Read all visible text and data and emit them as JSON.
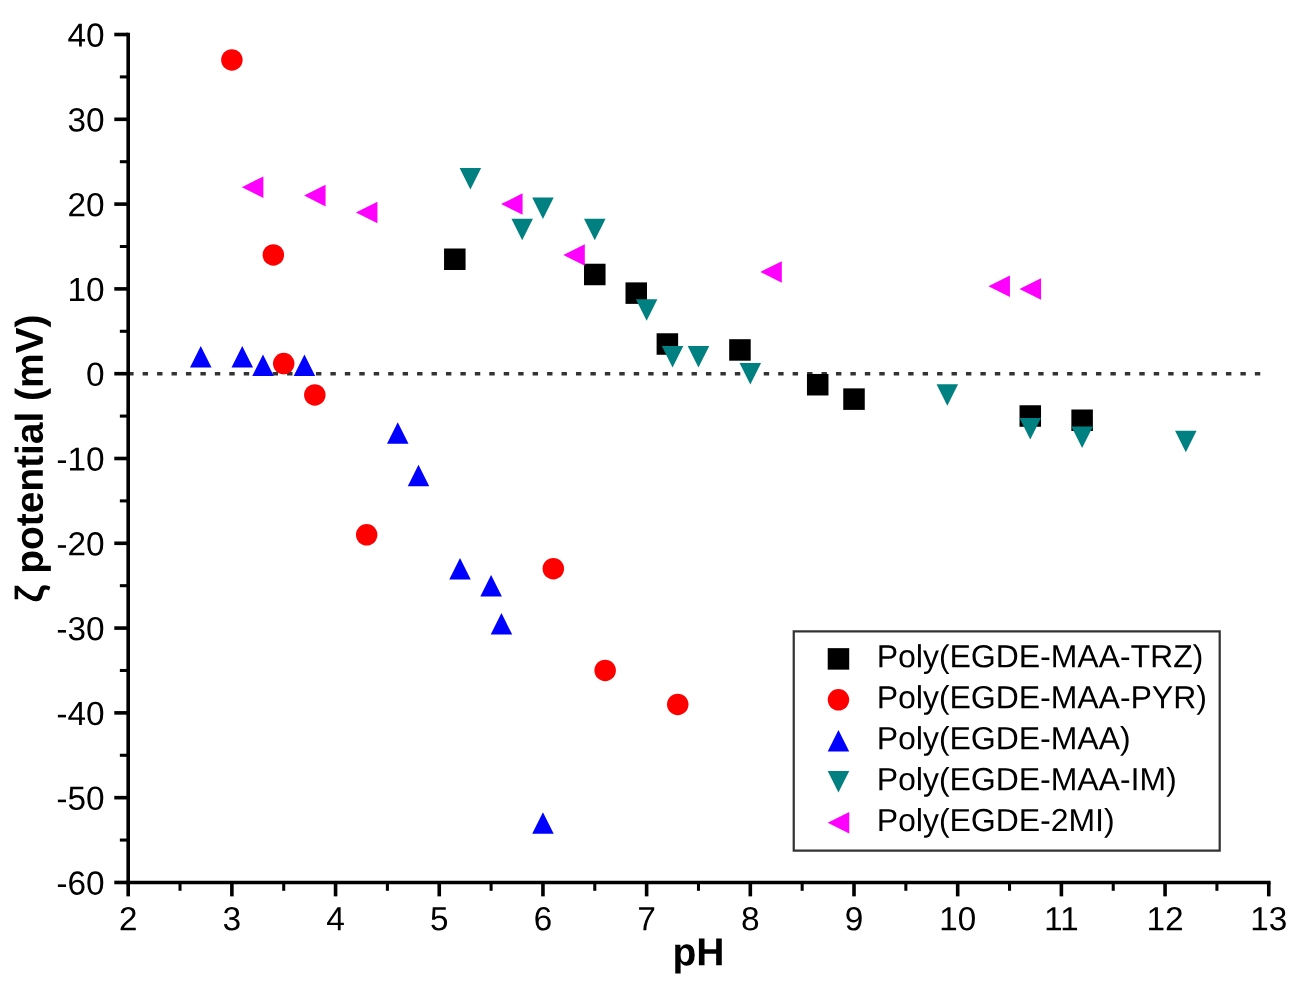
{
  "chart_data": {
    "type": "scatter",
    "xlabel": "pH",
    "ylabel": "ζ potential (mV)",
    "xlim": [
      2,
      13
    ],
    "xticks": [
      2,
      3,
      4,
      5,
      6,
      7,
      8,
      9,
      10,
      11,
      12,
      13
    ],
    "ylim": [
      -60,
      40
    ],
    "yticks": [
      -60,
      -50,
      -40,
      -30,
      -20,
      -10,
      0,
      10,
      20,
      30,
      40
    ],
    "grid": false,
    "legend": "bottom right",
    "ref_lines": [
      {
        "axis": "y",
        "value": 0,
        "color": "#333333",
        "line_style": "dotted"
      }
    ],
    "series": [
      {
        "name": "Poly(EGDE-MAA-TRZ)",
        "color": "#000000",
        "marker": "square",
        "x": [
          5.15,
          6.5,
          6.9,
          7.2,
          7.9,
          8.65,
          9.0,
          10.7,
          11.2
        ],
        "values": [
          13.5,
          11.7,
          9.5,
          3.5,
          2.8,
          -1.3,
          -3,
          -5,
          -5.5
        ]
      },
      {
        "name": "Poly(EGDE-MAA-PYR)",
        "color": "#ff0000",
        "marker": "circle",
        "x": [
          3.0,
          3.4,
          3.5,
          3.8,
          4.3,
          6.1,
          6.6,
          7.3
        ],
        "values": [
          37,
          14,
          1.2,
          -2.5,
          -19,
          -23,
          -35,
          -39
        ]
      },
      {
        "name": "Poly(EGDE-MAA)",
        "color": "#0000ff",
        "marker": "triangle",
        "x": [
          2.7,
          3.1,
          3.3,
          3.7,
          4.6,
          4.8,
          5.2,
          5.5,
          5.6,
          6.0
        ],
        "values": [
          2,
          2,
          1,
          1,
          -7,
          -12,
          -23,
          -25,
          -29.5,
          -53
        ]
      },
      {
        "name": "Poly(EGDE-MAA-IM)",
        "color": "#008080",
        "marker": "triangle-down",
        "x": [
          5.3,
          5.8,
          6.0,
          6.5,
          7.0,
          7.25,
          7.5,
          8.0,
          9.9,
          10.7,
          11.2,
          12.2
        ],
        "values": [
          23,
          17,
          19.5,
          17,
          7.5,
          2,
          2,
          0,
          -2.5,
          -6.5,
          -7.5,
          -8
        ]
      },
      {
        "name": "Poly(EGDE-2MI)",
        "color": "#ff00ff",
        "marker": "triangle-left",
        "x": [
          3.2,
          3.8,
          4.3,
          5.7,
          6.3,
          8.2,
          10.4,
          10.7
        ],
        "values": [
          22,
          21,
          19,
          20,
          14,
          12,
          10.3,
          10
        ]
      }
    ]
  }
}
